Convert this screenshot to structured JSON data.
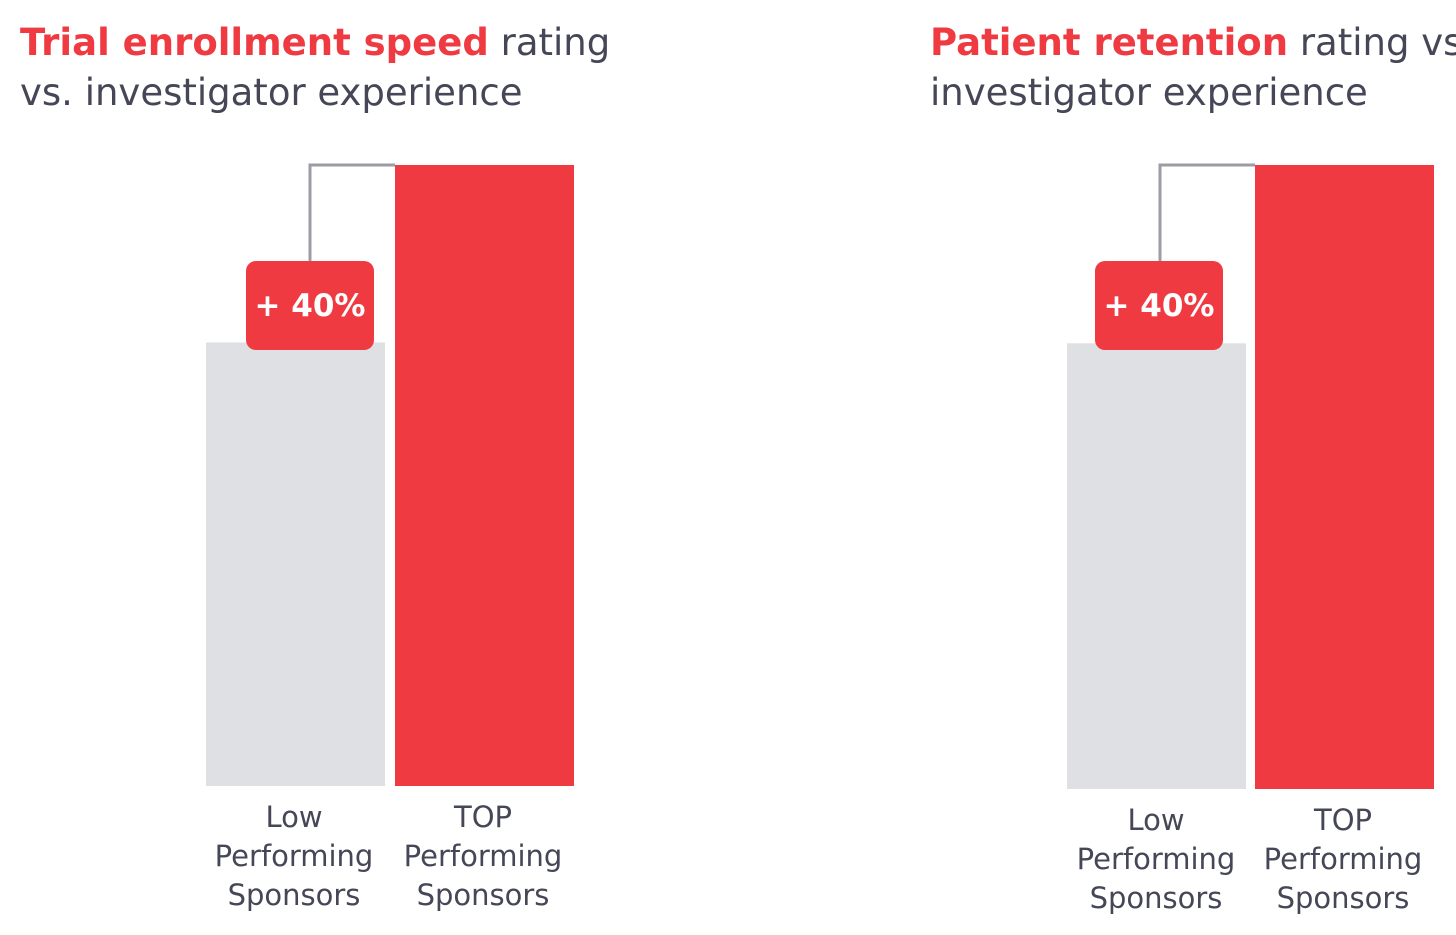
{
  "colors": {
    "accent": "#ef3a42",
    "low_bar": "#dfe0e3",
    "connector": "#9b9ca6",
    "text": "#454757"
  },
  "chart_data": [
    {
      "type": "bar",
      "title_highlight": "Trial enrollment speed",
      "title_rest": "rating",
      "title_line2": "vs. investigator experience",
      "categories": [
        [
          "Low",
          "Performing",
          "Sponsors"
        ],
        [
          "TOP",
          "Performing",
          "Sponsors"
        ]
      ],
      "values": [
        100,
        140
      ],
      "ylim": [
        0,
        140
      ],
      "annotation": "+ 40%"
    },
    {
      "type": "bar",
      "title_highlight": "Patient retention",
      "title_rest": "rating vs.",
      "title_line2": "investigator experience",
      "categories": [
        [
          "Low",
          "Performing",
          "Sponsors"
        ],
        [
          "TOP",
          "Performing",
          "Sponsors"
        ]
      ],
      "values": [
        100,
        140
      ],
      "ylim": [
        0,
        140
      ],
      "annotation": "+ 40%"
    }
  ]
}
